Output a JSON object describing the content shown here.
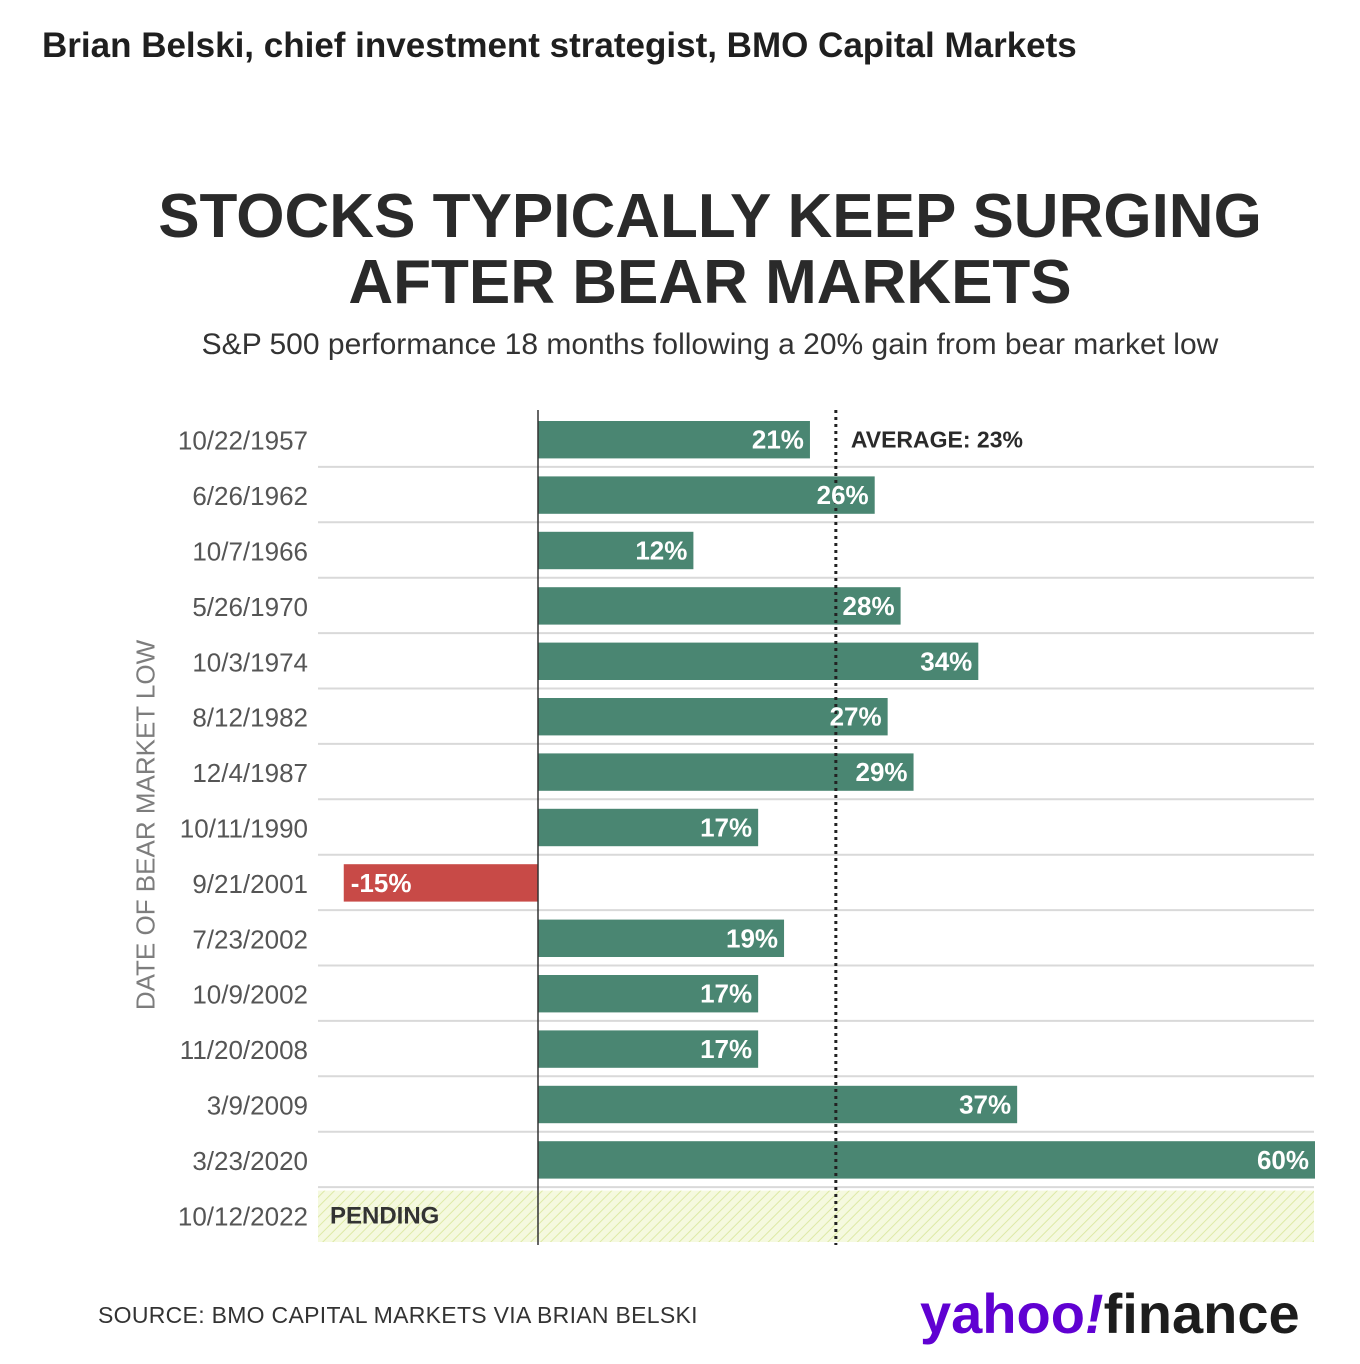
{
  "byline": "Brian Belski, chief investment strategist, BMO Capital Markets",
  "logo": {
    "yahoo": "yahoo",
    "exclamation": "!",
    "finance": "finance"
  },
  "source": "SOURCE: BMO CAPITAL MARKETS VIA BRIAN BELSKI",
  "colors": {
    "positive": "#4a8672",
    "negative": "#c84a47",
    "pending": "#f2f8d9",
    "brand": "#6001d2"
  },
  "chart_data": {
    "type": "bar",
    "orientation": "horizontal",
    "title_lines": [
      "STOCKS TYPICALLY KEEP SURGING",
      "AFTER BEAR MARKETS"
    ],
    "subtitle": "S&P 500 performance 18 months following a 20% gain from bear market low",
    "ylabel": "DATE OF BEAR MARKET LOW",
    "xlim": [
      -20,
      60
    ],
    "average": {
      "value": 23,
      "label": "AVERAGE: 23%"
    },
    "pending_label": "PENDING",
    "categories": [
      "10/22/1957",
      "6/26/1962",
      "10/7/1966",
      "5/26/1970",
      "10/3/1974",
      "8/12/1982",
      "12/4/1987",
      "10/11/1990",
      "9/21/2001",
      "7/23/2002",
      "10/9/2002",
      "11/20/2008",
      "3/9/2009",
      "3/23/2020",
      "10/12/2022"
    ],
    "values": [
      21,
      26,
      12,
      28,
      34,
      27,
      29,
      17,
      -15,
      19,
      17,
      17,
      37,
      60,
      null
    ],
    "value_labels": [
      "21%",
      "26%",
      "12%",
      "28%",
      "34%",
      "27%",
      "29%",
      "17%",
      "-15%",
      "19%",
      "17%",
      "17%",
      "37%",
      "60%",
      ""
    ]
  }
}
